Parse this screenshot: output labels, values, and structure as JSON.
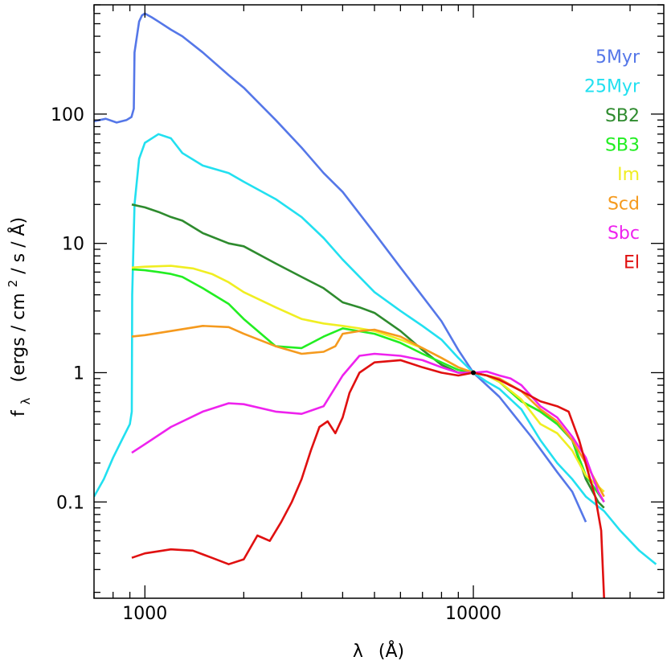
{
  "chart_data": {
    "type": "line",
    "xscale": "log",
    "yscale": "log",
    "xlabel_main": "λ",
    "xlabel_unit": "(Å)",
    "ylabel_main": "f",
    "ylabel_sub": "λ",
    "ylabel_unit_a": "(ergs / cm",
    "ylabel_sup": "2",
    "ylabel_unit_b": " / s / Å)",
    "xlim": [
      700,
      38000
    ],
    "ylim": [
      0.018,
      700
    ],
    "xticks": [
      {
        "value": 1000,
        "label": "1000"
      },
      {
        "value": 10000,
        "label": "10000"
      }
    ],
    "yticks": [
      {
        "value": 0.1,
        "label": "0.1"
      },
      {
        "value": 1,
        "label": "1"
      },
      {
        "value": 10,
        "label": "10"
      },
      {
        "value": 100,
        "label": "100"
      }
    ],
    "normalization_point": {
      "x": 10000,
      "y": 1
    },
    "series": [
      {
        "name": "5Myr",
        "color": "#5577e8",
        "points": [
          [
            700,
            88
          ],
          [
            760,
            92
          ],
          [
            820,
            86
          ],
          [
            880,
            90
          ],
          [
            910,
            95
          ],
          [
            925,
            110
          ],
          [
            930,
            300
          ],
          [
            960,
            520
          ],
          [
            980,
            580
          ],
          [
            1000,
            600
          ],
          [
            1050,
            560
          ],
          [
            1100,
            520
          ],
          [
            1200,
            450
          ],
          [
            1300,
            400
          ],
          [
            1500,
            300
          ],
          [
            1800,
            200
          ],
          [
            2000,
            160
          ],
          [
            2500,
            90
          ],
          [
            3000,
            55
          ],
          [
            3500,
            35
          ],
          [
            4000,
            25
          ],
          [
            5000,
            12
          ],
          [
            6000,
            6.5
          ],
          [
            7000,
            3.9
          ],
          [
            8000,
            2.5
          ],
          [
            9000,
            1.5
          ],
          [
            10000,
            1.0
          ],
          [
            12000,
            0.65
          ],
          [
            15000,
            0.32
          ],
          [
            18000,
            0.17
          ],
          [
            20000,
            0.12
          ],
          [
            22000,
            0.07
          ]
        ]
      },
      {
        "name": "25Myr",
        "color": "#22e0f0",
        "points": [
          [
            700,
            0.11
          ],
          [
            750,
            0.15
          ],
          [
            800,
            0.22
          ],
          [
            850,
            0.3
          ],
          [
            900,
            0.4
          ],
          [
            912,
            0.5
          ],
          [
            915,
            4
          ],
          [
            930,
            20
          ],
          [
            960,
            45
          ],
          [
            1000,
            60
          ],
          [
            1100,
            70
          ],
          [
            1200,
            65
          ],
          [
            1300,
            50
          ],
          [
            1500,
            40
          ],
          [
            1800,
            35
          ],
          [
            2000,
            30
          ],
          [
            2500,
            22
          ],
          [
            3000,
            16
          ],
          [
            3500,
            11
          ],
          [
            4000,
            7.5
          ],
          [
            5000,
            4.2
          ],
          [
            6000,
            3
          ],
          [
            7000,
            2.3
          ],
          [
            8000,
            1.8
          ],
          [
            9000,
            1.3
          ],
          [
            10000,
            1.0
          ],
          [
            11000,
            0.85
          ],
          [
            12000,
            0.75
          ],
          [
            14000,
            0.52
          ],
          [
            16000,
            0.3
          ],
          [
            18000,
            0.2
          ],
          [
            20000,
            0.15
          ],
          [
            22000,
            0.11
          ],
          [
            25000,
            0.085
          ],
          [
            28000,
            0.06
          ],
          [
            32000,
            0.042
          ],
          [
            36000,
            0.033
          ]
        ]
      },
      {
        "name": "SB2",
        "color": "#2e8b2e",
        "points": [
          [
            912,
            20
          ],
          [
            1000,
            19
          ],
          [
            1100,
            17.5
          ],
          [
            1200,
            16
          ],
          [
            1300,
            15
          ],
          [
            1500,
            12
          ],
          [
            1800,
            10
          ],
          [
            2000,
            9.5
          ],
          [
            2500,
            7
          ],
          [
            3000,
            5.5
          ],
          [
            3500,
            4.5
          ],
          [
            4000,
            3.5
          ],
          [
            4500,
            3.2
          ],
          [
            5000,
            2.9
          ],
          [
            6000,
            2.1
          ],
          [
            7000,
            1.5
          ],
          [
            8000,
            1.15
          ],
          [
            9000,
            1.0
          ],
          [
            10000,
            1.0
          ],
          [
            11000,
            0.95
          ],
          [
            12000,
            0.85
          ],
          [
            14000,
            0.6
          ],
          [
            16000,
            0.5
          ],
          [
            18000,
            0.4
          ],
          [
            20000,
            0.3
          ],
          [
            22000,
            0.15
          ],
          [
            24000,
            0.1
          ],
          [
            25000,
            0.09
          ]
        ]
      },
      {
        "name": "SB3",
        "color": "#22ee22",
        "points": [
          [
            912,
            6.3
          ],
          [
            1000,
            6.2
          ],
          [
            1100,
            6
          ],
          [
            1200,
            5.8
          ],
          [
            1300,
            5.5
          ],
          [
            1500,
            4.5
          ],
          [
            1800,
            3.4
          ],
          [
            2000,
            2.6
          ],
          [
            2500,
            1.6
          ],
          [
            3000,
            1.55
          ],
          [
            3500,
            1.9
          ],
          [
            4000,
            2.2
          ],
          [
            5000,
            2.0
          ],
          [
            6000,
            1.7
          ],
          [
            7000,
            1.4
          ],
          [
            8000,
            1.2
          ],
          [
            9000,
            1.05
          ],
          [
            10000,
            1.0
          ],
          [
            11000,
            0.95
          ],
          [
            12000,
            0.85
          ],
          [
            14000,
            0.6
          ],
          [
            16000,
            0.5
          ],
          [
            18000,
            0.4
          ],
          [
            20000,
            0.3
          ],
          [
            22000,
            0.16
          ],
          [
            25000,
            0.1
          ]
        ]
      },
      {
        "name": "Im",
        "color": "#f0ee22",
        "points": [
          [
            912,
            6.5
          ],
          [
            1000,
            6.6
          ],
          [
            1200,
            6.7
          ],
          [
            1400,
            6.4
          ],
          [
            1600,
            5.8
          ],
          [
            1800,
            5
          ],
          [
            2000,
            4.2
          ],
          [
            2500,
            3.2
          ],
          [
            3000,
            2.6
          ],
          [
            3500,
            2.4
          ],
          [
            4000,
            2.3
          ],
          [
            4500,
            2.2
          ],
          [
            5000,
            2.1
          ],
          [
            6000,
            1.8
          ],
          [
            7000,
            1.55
          ],
          [
            8000,
            1.3
          ],
          [
            9000,
            1.1
          ],
          [
            10000,
            1.0
          ],
          [
            11000,
            0.95
          ],
          [
            12000,
            0.85
          ],
          [
            14000,
            0.62
          ],
          [
            16000,
            0.4
          ],
          [
            18000,
            0.34
          ],
          [
            20000,
            0.25
          ],
          [
            22000,
            0.16
          ],
          [
            25000,
            0.12
          ]
        ]
      },
      {
        "name": "Scd",
        "color": "#f59a1e",
        "points": [
          [
            912,
            1.9
          ],
          [
            1000,
            1.95
          ],
          [
            1200,
            2.1
          ],
          [
            1500,
            2.3
          ],
          [
            1800,
            2.25
          ],
          [
            2000,
            2.0
          ],
          [
            2500,
            1.6
          ],
          [
            3000,
            1.4
          ],
          [
            3500,
            1.45
          ],
          [
            3800,
            1.6
          ],
          [
            4000,
            2.0
          ],
          [
            4500,
            2.1
          ],
          [
            5000,
            2.15
          ],
          [
            6000,
            1.9
          ],
          [
            7000,
            1.55
          ],
          [
            8000,
            1.3
          ],
          [
            9000,
            1.1
          ],
          [
            10000,
            1.0
          ],
          [
            11000,
            0.95
          ],
          [
            12000,
            0.9
          ],
          [
            14000,
            0.72
          ],
          [
            16000,
            0.52
          ],
          [
            18000,
            0.42
          ],
          [
            20000,
            0.3
          ],
          [
            22000,
            0.2
          ],
          [
            25000,
            0.11
          ]
        ]
      },
      {
        "name": "Sbc",
        "color": "#ee22ee",
        "points": [
          [
            912,
            0.24
          ],
          [
            1000,
            0.28
          ],
          [
            1200,
            0.38
          ],
          [
            1500,
            0.5
          ],
          [
            1800,
            0.58
          ],
          [
            2000,
            0.57
          ],
          [
            2500,
            0.5
          ],
          [
            3000,
            0.48
          ],
          [
            3500,
            0.55
          ],
          [
            4000,
            0.95
          ],
          [
            4500,
            1.35
          ],
          [
            5000,
            1.4
          ],
          [
            6000,
            1.35
          ],
          [
            7000,
            1.25
          ],
          [
            8000,
            1.1
          ],
          [
            9000,
            1.0
          ],
          [
            10000,
            1.0
          ],
          [
            11000,
            1.02
          ],
          [
            12000,
            0.95
          ],
          [
            13000,
            0.9
          ],
          [
            14000,
            0.8
          ],
          [
            16000,
            0.55
          ],
          [
            18000,
            0.45
          ],
          [
            20000,
            0.32
          ],
          [
            22000,
            0.22
          ],
          [
            24000,
            0.12
          ],
          [
            25000,
            0.1
          ]
        ]
      },
      {
        "name": "El",
        "color": "#e01010",
        "points": [
          [
            912,
            0.037
          ],
          [
            1000,
            0.04
          ],
          [
            1200,
            0.043
          ],
          [
            1400,
            0.042
          ],
          [
            1600,
            0.037
          ],
          [
            1800,
            0.033
          ],
          [
            2000,
            0.036
          ],
          [
            2200,
            0.055
          ],
          [
            2400,
            0.05
          ],
          [
            2600,
            0.07
          ],
          [
            2800,
            0.1
          ],
          [
            3000,
            0.15
          ],
          [
            3200,
            0.25
          ],
          [
            3400,
            0.38
          ],
          [
            3600,
            0.42
          ],
          [
            3800,
            0.34
          ],
          [
            4000,
            0.45
          ],
          [
            4200,
            0.7
          ],
          [
            4500,
            1.0
          ],
          [
            5000,
            1.2
          ],
          [
            6000,
            1.25
          ],
          [
            7000,
            1.1
          ],
          [
            8000,
            1.0
          ],
          [
            9000,
            0.95
          ],
          [
            10000,
            1.0
          ],
          [
            11000,
            0.95
          ],
          [
            12000,
            0.88
          ],
          [
            14000,
            0.72
          ],
          [
            16000,
            0.6
          ],
          [
            18000,
            0.55
          ],
          [
            19500,
            0.5
          ],
          [
            21000,
            0.3
          ],
          [
            22500,
            0.16
          ],
          [
            23500,
            0.11
          ],
          [
            24500,
            0.06
          ],
          [
            25000,
            0.018
          ]
        ]
      }
    ]
  }
}
